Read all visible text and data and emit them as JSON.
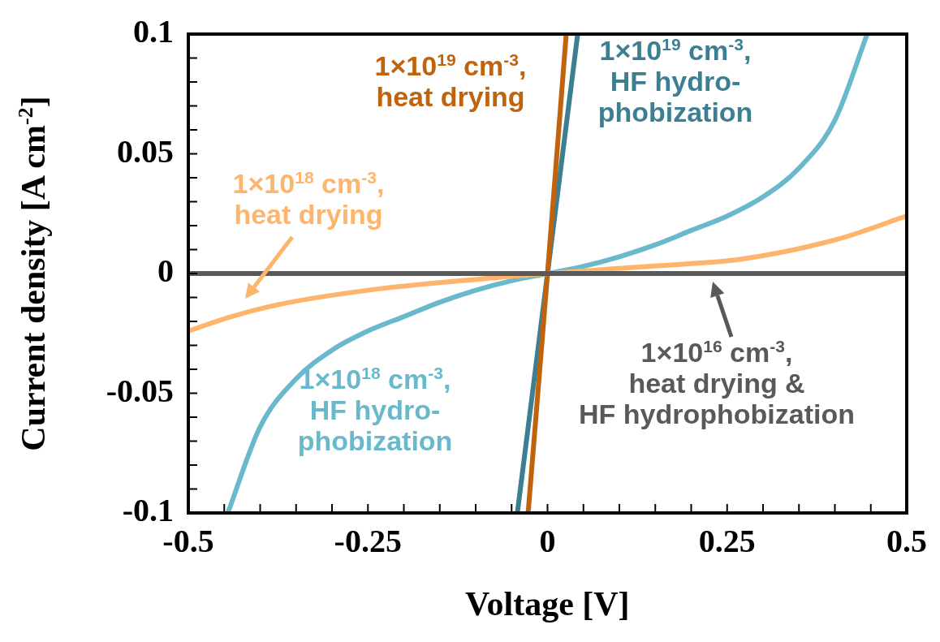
{
  "chart_data": {
    "type": "line",
    "xlabel": "Voltage [V]",
    "ylabel": "Current density [A cm$^{-2}$]",
    "xlim": [
      -0.5,
      0.5
    ],
    "ylim": [
      -0.1,
      0.1
    ],
    "xticks": [
      -0.5,
      {
        "value": -0.45,
        "label": null
      },
      {
        "value": -0.4,
        "label": null
      },
      {
        "value": -0.35,
        "label": null
      },
      {
        "value": -0.3,
        "label": null
      },
      -0.25,
      {
        "value": -0.2,
        "label": null
      },
      {
        "value": -0.15,
        "label": null
      },
      {
        "value": -0.1,
        "label": null
      },
      {
        "value": -0.05,
        "label": null
      },
      0,
      {
        "value": 0.05,
        "label": null
      },
      {
        "value": 0.1,
        "label": null
      },
      {
        "value": 0.15,
        "label": null
      },
      {
        "value": 0.2,
        "label": null
      },
      0.25,
      {
        "value": 0.3,
        "label": null
      },
      {
        "value": 0.35,
        "label": null
      },
      {
        "value": 0.4,
        "label": null
      },
      {
        "value": 0.45,
        "label": null
      },
      0.5
    ],
    "yticks": [
      -0.1,
      {
        "value": -0.09,
        "label": null
      },
      {
        "value": -0.08,
        "label": null
      },
      {
        "value": -0.07,
        "label": null
      },
      {
        "value": -0.06,
        "label": null
      },
      -0.05,
      {
        "value": -0.04,
        "label": null
      },
      {
        "value": -0.03,
        "label": null
      },
      {
        "value": -0.02,
        "label": null
      },
      {
        "value": -0.01,
        "label": null
      },
      0,
      {
        "value": 0.01,
        "label": null
      },
      {
        "value": 0.02,
        "label": null
      },
      {
        "value": 0.03,
        "label": null
      },
      {
        "value": 0.04,
        "label": null
      },
      0.05,
      {
        "value": 0.06,
        "label": null
      },
      {
        "value": 0.07,
        "label": null
      },
      {
        "value": 0.08,
        "label": null
      },
      {
        "value": 0.09,
        "label": null
      },
      0.1
    ],
    "annotations": [
      {
        "text": "1×10$^{16}$ cm$^{-3}$,\nheat drying &\nHF hydrophobization",
        "x": 0.23,
        "y": 0
      }
    ],
    "grid": false,
    "legend": false,
    "marker": "none",
    "line_style": "solid",
    "series": [
      {
        "color": "#595959",
        "x": [
          -0.5,
          0.5
        ],
        "values": [
          0,
          0
        ]
      },
      {
        "name": "1×10$^{18}$ cm$^{-3}$,\nheat drying",
        "color": "#fdb46c",
        "x": [
          -0.5,
          -0.44,
          -0.375,
          -0.25,
          -0.12,
          0,
          0.14,
          0.27,
          0.4,
          0.5
        ],
        "values": [
          -0.024,
          -0.018,
          -0.013,
          -0.007,
          -0.003,
          0,
          0.003,
          0.006,
          0.014,
          0.024
        ]
      },
      {
        "name": "1×10$^{18}$ cm$^{-3}$,\nHF hydro-\nphobization",
        "color": "#6ab8cc",
        "x": [
          -0.445,
          -0.4,
          -0.35,
          -0.3,
          -0.25,
          -0.2,
          -0.15,
          -0.1,
          -0.05,
          0,
          0.05,
          0.1,
          0.15,
          0.2,
          0.25,
          0.3,
          0.35,
          0.4,
          0.445
        ],
        "values": [
          -0.1,
          -0.064,
          -0.044,
          -0.032,
          -0.024,
          -0.018,
          -0.012,
          -0.007,
          -0.003,
          0,
          0.003,
          0.007,
          0.012,
          0.018,
          0.024,
          0.032,
          0.044,
          0.064,
          0.1
        ]
      },
      {
        "name": "1×10$^{19}$ cm$^{-3}$,\nheat drying",
        "color": "#c0630c",
        "x": [
          -0.027,
          0,
          0.026
        ],
        "values": [
          -0.1,
          0,
          0.1
        ]
      },
      {
        "name": "1×10$^{19}$ cm$^{-3}$,\nHF hydro-\nphobization",
        "color": "#3d7f92",
        "x": [
          -0.042,
          0,
          0.042
        ],
        "values": [
          -0.1,
          0,
          0.1
        ]
      }
    ]
  }
}
